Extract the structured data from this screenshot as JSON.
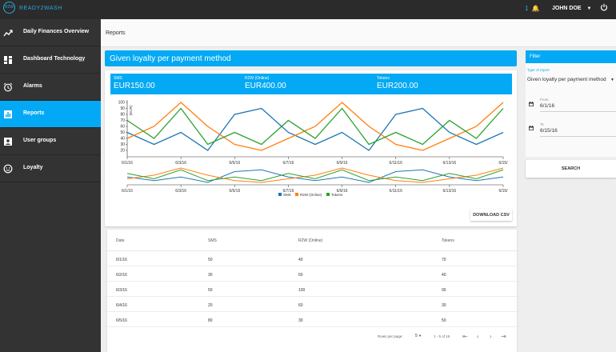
{
  "brand": {
    "ring_text": "R2W",
    "name": "READY2WASH"
  },
  "header": {
    "notification_count": "1",
    "user_name": "JOHN DOE"
  },
  "sidebar": {
    "items": [
      {
        "label": "Daily Finances Overview",
        "icon": "trend-icon"
      },
      {
        "label": "Dashboard Technology",
        "icon": "dashboard-icon"
      },
      {
        "label": "Alarms",
        "icon": "alarm-icon"
      },
      {
        "label": "Reports",
        "icon": "reports-icon",
        "active": true
      },
      {
        "label": "User groups",
        "icon": "user-groups-icon"
      },
      {
        "label": "Loyalty",
        "icon": "loyalty-icon"
      }
    ]
  },
  "page": {
    "title": "Reports"
  },
  "report": {
    "heading": "Given loyalty per payment method",
    "totals": [
      {
        "label": "SMS",
        "value": "EUR150.00"
      },
      {
        "label": "R2W (Online)",
        "value": "EUR400.00"
      },
      {
        "label": "Tokens",
        "value": "EUR200.00"
      }
    ],
    "csv_label": "DOWNLOAD CSV"
  },
  "chart_data": {
    "type": "line",
    "x": [
      "6/1/16",
      "6/2/16",
      "6/3/16",
      "6/4/16",
      "6/5/16",
      "6/6/16",
      "6/7/16",
      "6/8/16",
      "6/9/16",
      "6/10/16",
      "6/11/16",
      "6/12/16",
      "6/13/16",
      "6/14/16",
      "6/15/16"
    ],
    "x_tick_labels": [
      "6/1/16",
      "6/3/16",
      "6/5/16",
      "6/7/16",
      "6/9/16",
      "6/11/16",
      "6/13/16",
      "6/15/"
    ],
    "ylabel": "(EUR)",
    "ylim": [
      20,
      100
    ],
    "y_ticks": [
      20,
      30,
      40,
      50,
      60,
      70,
      80,
      90,
      100
    ],
    "series": [
      {
        "name": "SMS",
        "color": "#1f77b4",
        "values": [
          50,
          30,
          50,
          20,
          80,
          90,
          50,
          30,
          50,
          20,
          80,
          90,
          50,
          30,
          50
        ]
      },
      {
        "name": "R2W (Online)",
        "color": "#ff7f0e",
        "values": [
          40,
          60,
          100,
          60,
          30,
          20,
          40,
          60,
          100,
          60,
          30,
          20,
          40,
          60,
          100
        ]
      },
      {
        "name": "Tokens",
        "color": "#2ca02c",
        "values": [
          70,
          40,
          90,
          30,
          50,
          30,
          70,
          40,
          90,
          30,
          50,
          30,
          70,
          40,
          90
        ]
      }
    ],
    "legend": "bottom"
  },
  "table": {
    "columns": [
      "Date",
      "SMS",
      "R2W (Online)",
      "Tokens"
    ],
    "rows": [
      [
        "6/1/16",
        "50",
        "40",
        "70"
      ],
      [
        "6/2/16",
        "30",
        "60",
        "40"
      ],
      [
        "6/3/16",
        "50",
        "100",
        "90"
      ],
      [
        "6/4/16",
        "20",
        "60",
        "30"
      ],
      [
        "6/5/16",
        "80",
        "30",
        "50"
      ]
    ],
    "rows_per_page_label": "Rows per page:",
    "rows_per_page_value": "5",
    "range_label": "1 - 5 of 15"
  },
  "filter": {
    "title": "Filter",
    "type_label": "Type of report",
    "type_value": "Given loyalty per payment method",
    "from_label": "From",
    "from_value": "6/1/16",
    "to_label": "To",
    "to_value": "6/15/16",
    "search_label": "SEARCH"
  }
}
